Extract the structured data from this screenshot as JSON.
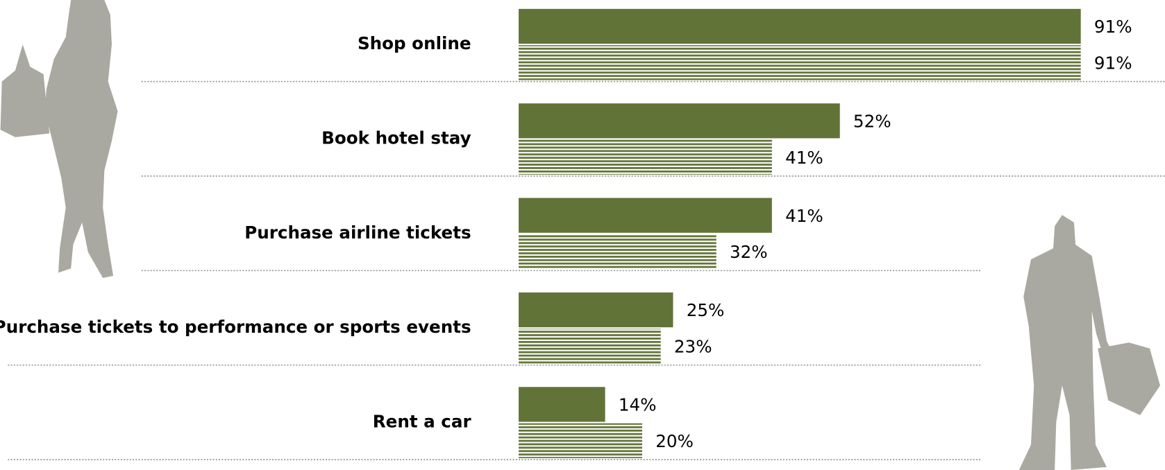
{
  "chart_data": {
    "type": "bar",
    "orientation": "horizontal",
    "categories": [
      "Shop online",
      "Book hotel stay",
      "Purchase airline tickets",
      "Purchase tickets to performance or sports events",
      "Rent a car"
    ],
    "series": [
      {
        "color": "#627337",
        "pattern": "solid",
        "values": [
          91,
          52,
          41,
          25,
          14
        ],
        "value_labels": [
          "91%",
          "52%",
          "41%",
          "25%",
          "14%"
        ]
      },
      {
        "color": "#627337",
        "pattern": "stripes",
        "values": [
          91,
          41,
          32,
          23,
          20
        ],
        "value_labels": [
          "91%",
          "41%",
          "32%",
          "23%",
          "20%"
        ]
      }
    ]
  }
}
